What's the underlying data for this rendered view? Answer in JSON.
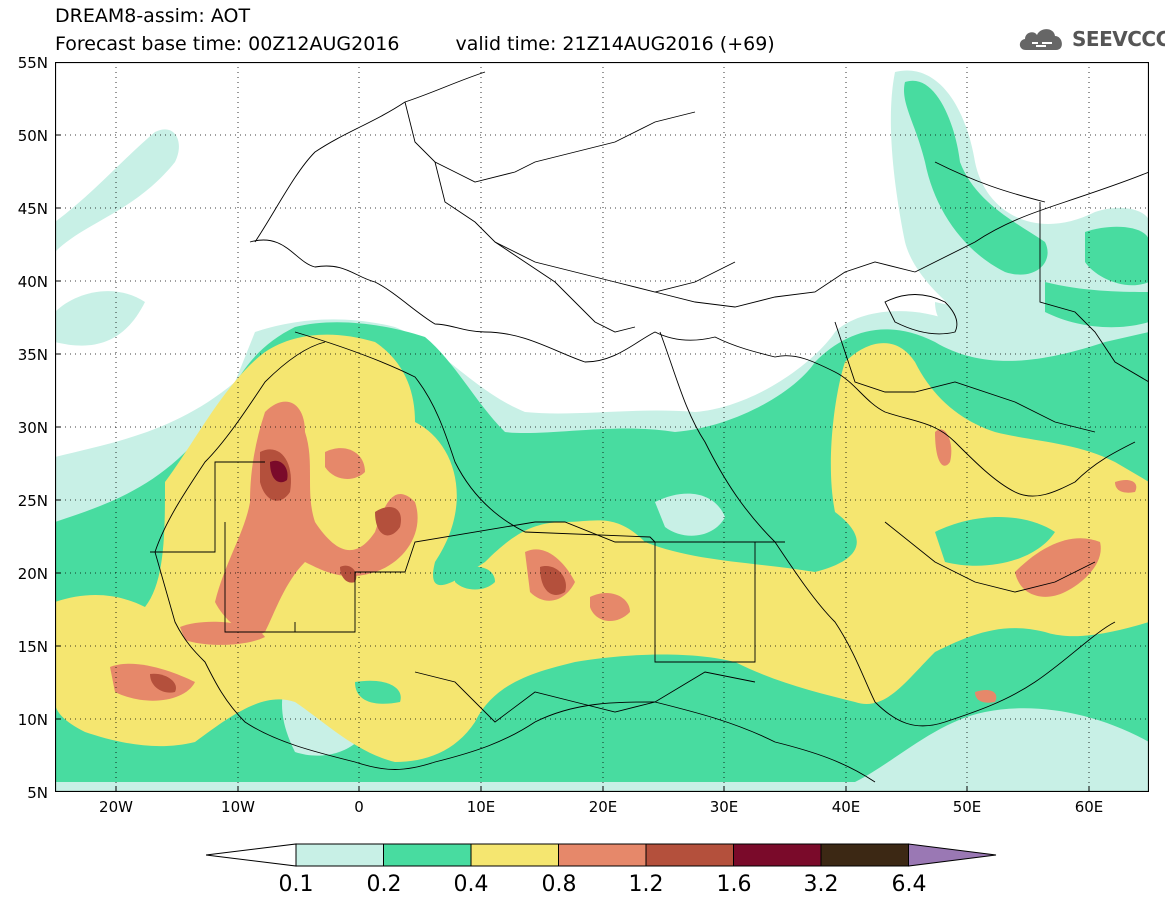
{
  "header": {
    "title_line1": "DREAM8-assim: AOT",
    "base_time": "Forecast base time: 00Z12AUG2016",
    "valid_time": "valid time: 21Z14AUG2016 (+69)",
    "logo_text": "SEEVCCC"
  },
  "axes": {
    "lat_labels": [
      "55N",
      "50N",
      "45N",
      "40N",
      "35N",
      "30N",
      "25N",
      "20N",
      "15N",
      "10N",
      "5N"
    ],
    "lon_labels": [
      "20W",
      "10W",
      "0",
      "10E",
      "20E",
      "30E",
      "40E",
      "50E",
      "60E"
    ]
  },
  "colorbar": {
    "labels": [
      "0.1",
      "0.2",
      "0.4",
      "0.8",
      "1.2",
      "1.6",
      "3.2",
      "6.4"
    ],
    "colors": [
      "#ffffff",
      "#c8f0e6",
      "#48dca0",
      "#f5e670",
      "#e6886a",
      "#b4503c",
      "#7a0a2a",
      "#3c2814",
      "#9a78b4"
    ]
  },
  "map": {
    "levels": {
      "background": "#ffffff",
      "light": "#c8f0e6",
      "green": "#48dca0",
      "yellow": "#f5e670",
      "orange": "#e6886a",
      "brown": "#b4503c",
      "maroon": "#7a0a2a"
    }
  }
}
